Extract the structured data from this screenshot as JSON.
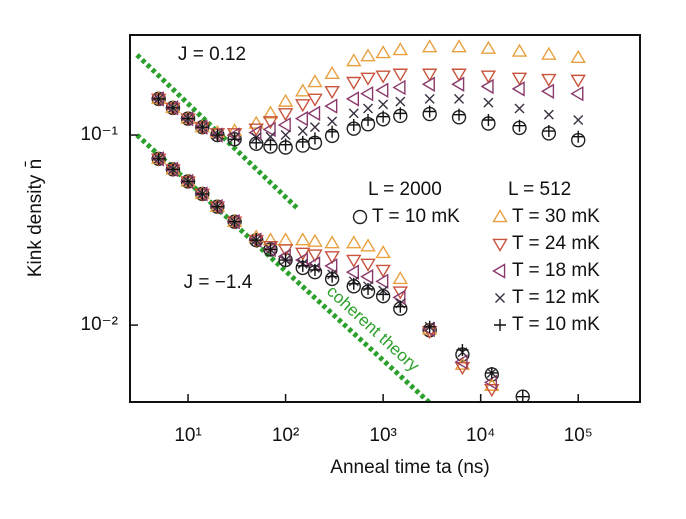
{
  "chart_data": {
    "type": "scatter",
    "xlabel": "Anneal time ta (ns)",
    "ylabel": "Kink density n̄",
    "xscale": "log",
    "yscale": "log",
    "xlim": [
      2.54,
      430000
    ],
    "ylim": [
      0.00394,
      0.336
    ],
    "xticks": [
      {
        "value": 10,
        "label": "10¹"
      },
      {
        "value": 100,
        "label": "10²"
      },
      {
        "value": 1000,
        "label": "10³"
      },
      {
        "value": 10000,
        "label": "10⁴"
      },
      {
        "value": 100000,
        "label": "10⁵"
      }
    ],
    "yticks": [
      {
        "value": 0.1,
        "label": "10⁻¹"
      },
      {
        "value": 0.01,
        "label": "10⁻²"
      }
    ],
    "groups": [
      {
        "label": "J = 0.12",
        "series": [
          {
            "name": "T = 10 mK",
            "legend_title": "L = 2000",
            "marker": "circle",
            "color": "#222222",
            "x": [
              5,
              7,
              10,
              14,
              20,
              30,
              50,
              70,
              100,
              150,
              200,
              300,
              500,
              700,
              1000,
              1500,
              3000,
              6000,
              12000,
              25000,
              50000,
              100000
            ],
            "values": [
              0.155,
              0.139,
              0.122,
              0.11,
              0.1,
              0.095,
              0.09,
              0.087,
              0.086,
              0.088,
              0.091,
              0.099,
              0.108,
              0.114,
              0.121,
              0.126,
              0.129,
              0.124,
              0.115,
              0.109,
              0.102,
              0.094
            ]
          },
          {
            "name": "T = 30 mK",
            "legend_title": "L = 512",
            "marker": "tri-up",
            "color": "#e8a040",
            "x": [
              5,
              7,
              10,
              14,
              20,
              30,
              50,
              70,
              100,
              150,
              200,
              300,
              500,
              700,
              1000,
              1500,
              3000,
              6000,
              12000,
              25000,
              50000,
              100000
            ],
            "values": [
              0.155,
              0.139,
              0.122,
              0.11,
              0.103,
              0.105,
              0.115,
              0.13,
              0.15,
              0.17,
              0.19,
              0.21,
              0.245,
              0.26,
              0.27,
              0.28,
              0.29,
              0.29,
              0.285,
              0.275,
              0.265,
              0.255
            ]
          },
          {
            "name": "T = 24 mK",
            "marker": "tri-down",
            "color": "#c8543c",
            "x": [
              5,
              7,
              10,
              14,
              20,
              30,
              50,
              70,
              100,
              150,
              200,
              300,
              500,
              700,
              1000,
              1500,
              3000,
              6000,
              12000,
              25000,
              50000,
              100000
            ],
            "values": [
              0.155,
              0.139,
              0.122,
              0.11,
              0.102,
              0.102,
              0.108,
              0.118,
              0.13,
              0.145,
              0.155,
              0.17,
              0.19,
              0.2,
              0.205,
              0.21,
              0.21,
              0.21,
              0.205,
              0.2,
              0.197,
              0.195
            ]
          },
          {
            "name": "T = 18 mK",
            "marker": "tri-left",
            "color": "#8a3a6a",
            "x": [
              5,
              7,
              10,
              14,
              20,
              30,
              50,
              70,
              100,
              150,
              200,
              300,
              500,
              700,
              1000,
              1500,
              3000,
              6000,
              12000,
              25000,
              50000,
              100000
            ],
            "values": [
              0.155,
              0.139,
              0.122,
              0.11,
              0.1,
              0.1,
              0.103,
              0.107,
              0.113,
              0.122,
              0.13,
              0.142,
              0.155,
              0.165,
              0.172,
              0.178,
              0.185,
              0.185,
              0.18,
              0.175,
              0.17,
              0.165
            ]
          },
          {
            "name": "T = 12 mK",
            "marker": "x",
            "color": "#3a3040",
            "x": [
              5,
              7,
              10,
              14,
              20,
              30,
              50,
              70,
              100,
              150,
              200,
              300,
              500,
              700,
              1000,
              1500,
              3000,
              6000,
              12000,
              25000,
              50000,
              100000
            ],
            "values": [
              0.155,
              0.139,
              0.122,
              0.11,
              0.1,
              0.097,
              0.097,
              0.098,
              0.1,
              0.105,
              0.11,
              0.118,
              0.13,
              0.138,
              0.145,
              0.15,
              0.155,
              0.155,
              0.148,
              0.138,
              0.128,
              0.12
            ]
          },
          {
            "name": "T = 10 mK",
            "marker": "plus",
            "color": "#111111",
            "x": [
              5,
              7,
              10,
              14,
              20,
              30,
              50,
              70,
              100,
              150,
              200,
              300,
              500,
              700,
              1000,
              1500,
              3000,
              6000,
              12000,
              25000,
              50000,
              100000
            ],
            "values": [
              0.155,
              0.139,
              0.122,
              0.11,
              0.1,
              0.095,
              0.091,
              0.089,
              0.089,
              0.092,
              0.096,
              0.104,
              0.113,
              0.12,
              0.125,
              0.13,
              0.133,
              0.128,
              0.12,
              0.112,
              0.105,
              0.098
            ]
          }
        ]
      },
      {
        "label": "J = −1.4",
        "series": [
          {
            "marker": "circle",
            "color": "#222222",
            "x": [
              5,
              7,
              10,
              14,
              20,
              30,
              50,
              70,
              100,
              150,
              200,
              300,
              500,
              700,
              1000,
              1500,
              3000,
              6500,
              13000,
              27000
            ],
            "values": [
              0.075,
              0.066,
              0.057,
              0.049,
              0.042,
              0.035,
              0.028,
              0.025,
              0.022,
              0.02,
              0.019,
              0.0175,
              0.016,
              0.015,
              0.0142,
              0.0122,
              0.0094,
              0.007,
              0.0055,
              0.0042
            ]
          },
          {
            "marker": "tri-up",
            "color": "#e8a040",
            "x": [
              5,
              7,
              10,
              14,
              20,
              30,
              50,
              70,
              100,
              150,
              200,
              300,
              500,
              700,
              1000,
              1500,
              3000,
              6500,
              13000
            ],
            "values": [
              0.075,
              0.066,
              0.057,
              0.049,
              0.042,
              0.035,
              0.029,
              0.028,
              0.028,
              0.028,
              0.0275,
              0.027,
              0.027,
              0.026,
              0.024,
              0.0175,
              0.0095,
              0.0062,
              0.0048
            ]
          },
          {
            "marker": "tri-down",
            "color": "#c8543c",
            "x": [
              5,
              7,
              10,
              14,
              20,
              30,
              50,
              70,
              100,
              150,
              200,
              300,
              500,
              700,
              1000,
              1500,
              3000,
              6500,
              13000
            ],
            "values": [
              0.075,
              0.066,
              0.057,
              0.049,
              0.042,
              0.035,
              0.028,
              0.026,
              0.025,
              0.024,
              0.0235,
              0.023,
              0.022,
              0.021,
              0.0195,
              0.015,
              0.0093,
              0.006,
              0.0046
            ]
          },
          {
            "marker": "tri-left",
            "color": "#8a3a6a",
            "x": [
              5,
              7,
              10,
              14,
              20,
              30,
              50,
              70,
              100,
              150,
              200,
              300,
              500,
              700,
              1000,
              1500,
              3000,
              6500,
              13000
            ],
            "values": [
              0.075,
              0.066,
              0.057,
              0.049,
              0.042,
              0.035,
              0.028,
              0.025,
              0.023,
              0.022,
              0.021,
              0.0205,
              0.019,
              0.018,
              0.017,
              0.014,
              0.0095,
              0.0064,
              0.005
            ]
          },
          {
            "marker": "x",
            "color": "#3a3040",
            "x": [
              5,
              7,
              10,
              14,
              20,
              30,
              50,
              70,
              100,
              150,
              200,
              300,
              500,
              700,
              1000,
              1500,
              3000,
              6500,
              13000
            ],
            "values": [
              0.075,
              0.066,
              0.057,
              0.049,
              0.042,
              0.035,
              0.028,
              0.025,
              0.022,
              0.021,
              0.02,
              0.0185,
              0.017,
              0.016,
              0.0152,
              0.013,
              0.0098,
              0.0072,
              0.0056
            ]
          },
          {
            "marker": "plus",
            "color": "#111111",
            "x": [
              5,
              7,
              10,
              14,
              20,
              30,
              50,
              70,
              100,
              150,
              200,
              300,
              500,
              700,
              1000,
              1500,
              3000,
              6500,
              13000,
              27000
            ],
            "values": [
              0.075,
              0.066,
              0.057,
              0.049,
              0.042,
              0.035,
              0.028,
              0.025,
              0.022,
              0.0205,
              0.0195,
              0.018,
              0.0165,
              0.0155,
              0.0145,
              0.0125,
              0.0098,
              0.0074,
              0.0056,
              0.0042
            ]
          }
        ]
      }
    ],
    "theory": [
      {
        "color": "#2ca02c",
        "x": [
          3,
          131
        ],
        "values": [
          0.264,
          0.0413
        ]
      },
      {
        "color": "#2ca02c",
        "label": "coherent theory",
        "x": [
          3,
          3000
        ],
        "values": [
          0.1,
          0.0039
        ]
      }
    ]
  }
}
